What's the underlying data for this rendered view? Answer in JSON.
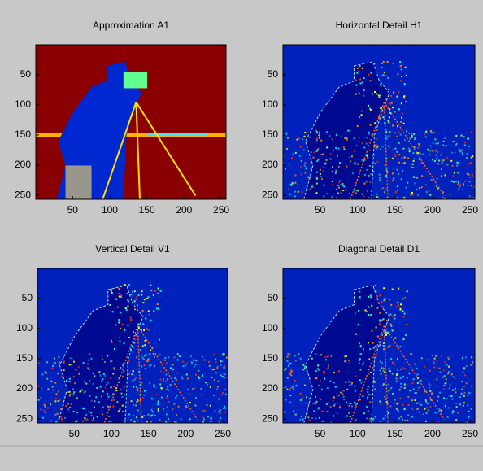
{
  "chart_data": [
    {
      "type": "image",
      "title": "Approximation A1",
      "colormap": "jet",
      "xlim": [
        0.5,
        256.5
      ],
      "ylim": [
        0.5,
        256.5
      ],
      "xticks": [
        50,
        100,
        150,
        200,
        250
      ],
      "yticks": [
        50,
        100,
        150,
        200,
        250
      ],
      "y_reversed": true
    },
    {
      "type": "image",
      "title": "Horizontal Detail H1",
      "colormap": "jet",
      "xlim": [
        0.5,
        256.5
      ],
      "ylim": [
        0.5,
        256.5
      ],
      "xticks": [
        50,
        100,
        150,
        200,
        250
      ],
      "yticks": [
        50,
        100,
        150,
        200,
        250
      ],
      "y_reversed": true
    },
    {
      "type": "image",
      "title": "Vertical Detail V1",
      "colormap": "jet",
      "xlim": [
        0.5,
        256.5
      ],
      "ylim": [
        0.5,
        256.5
      ],
      "xticks": [
        50,
        100,
        150,
        200,
        250
      ],
      "yticks": [
        50,
        100,
        150,
        200,
        250
      ],
      "y_reversed": true
    },
    {
      "type": "image",
      "title": "Diagonal Detail D1",
      "colormap": "jet",
      "xlim": [
        0.5,
        256.5
      ],
      "ylim": [
        0.5,
        256.5
      ],
      "xticks": [
        50,
        100,
        150,
        200,
        250
      ],
      "yticks": [
        50,
        100,
        150,
        200,
        250
      ],
      "y_reversed": true
    }
  ]
}
